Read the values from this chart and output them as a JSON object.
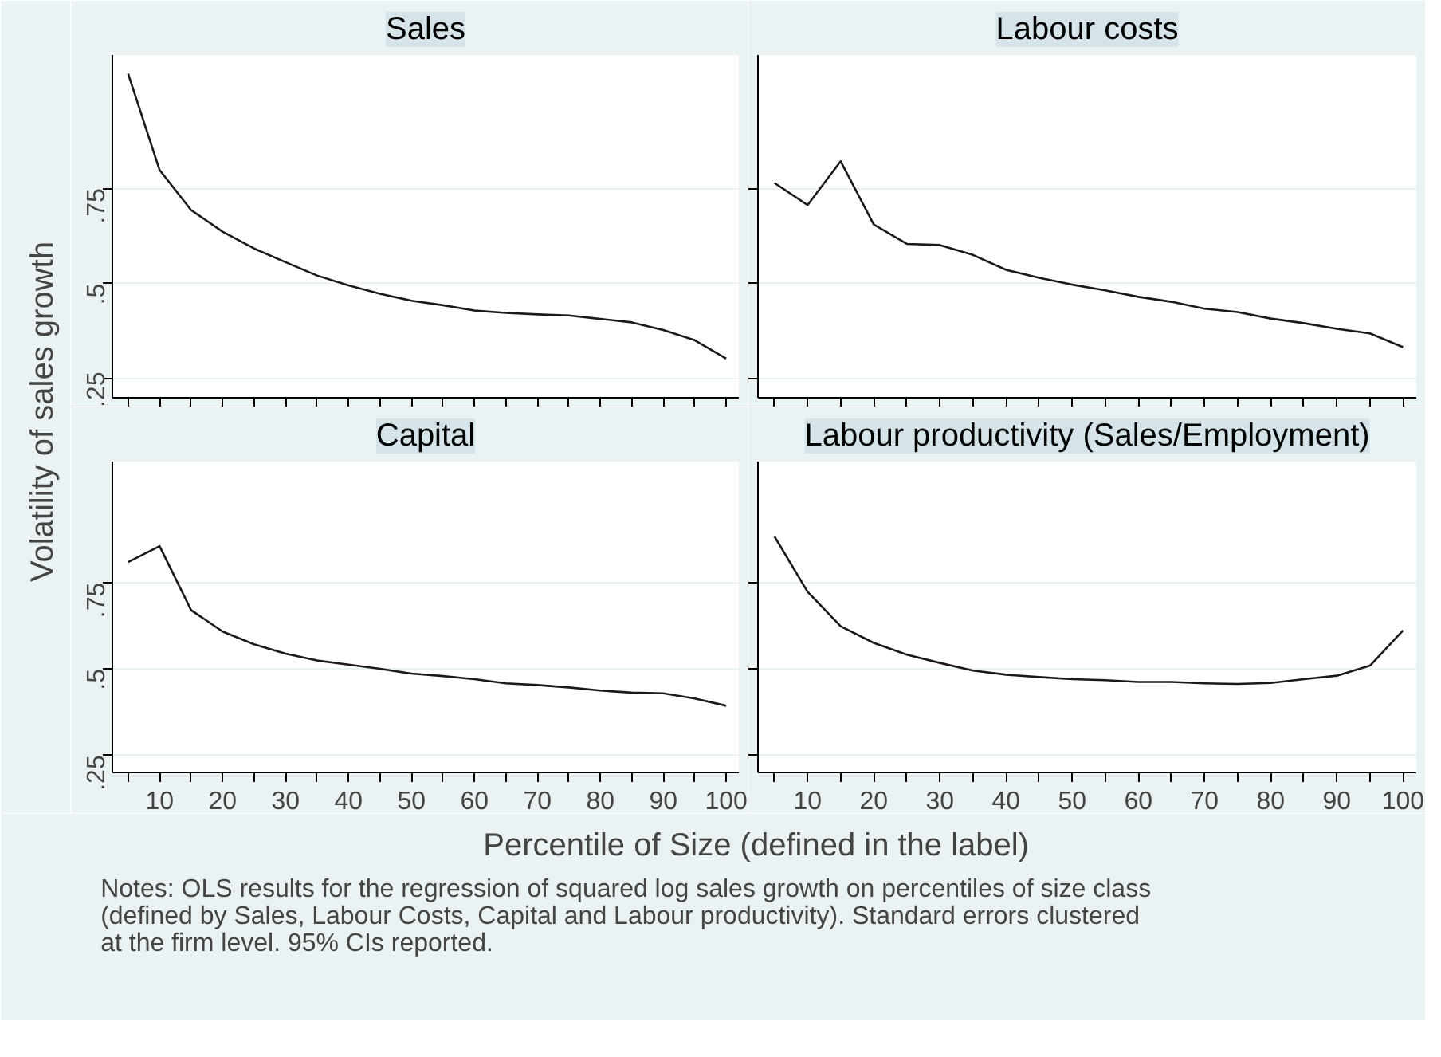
{
  "chart_data": [
    {
      "type": "line",
      "title": "Sales",
      "ylabel": "Volatility  of sales growth",
      "x": [
        5,
        10,
        15,
        20,
        25,
        30,
        35,
        40,
        45,
        50,
        55,
        60,
        65,
        70,
        75,
        80,
        85,
        90,
        95,
        100
      ],
      "values": [
        1.051,
        0.798,
        0.693,
        0.636,
        0.592,
        0.556,
        0.521,
        0.495,
        0.473,
        0.455,
        0.443,
        0.429,
        0.423,
        0.419,
        0.416,
        0.407,
        0.398,
        0.378,
        0.351,
        0.303
      ],
      "color": "#1a1a1a",
      "marker": "none",
      "xlim": [
        2.5,
        102
      ],
      "ylim": [
        0.2,
        1.1
      ],
      "xticks": [
        {
          "value": 5,
          "label": null
        },
        {
          "value": 10,
          "label": null
        },
        {
          "value": 15,
          "label": null
        },
        {
          "value": 20,
          "label": null
        },
        {
          "value": 25,
          "label": null
        },
        {
          "value": 30,
          "label": null
        },
        {
          "value": 35,
          "label": null
        },
        {
          "value": 40,
          "label": null
        },
        {
          "value": 45,
          "label": null
        },
        {
          "value": 50,
          "label": null
        },
        {
          "value": 55,
          "label": null
        },
        {
          "value": 60,
          "label": null
        },
        {
          "value": 65,
          "label": null
        },
        {
          "value": 70,
          "label": null
        },
        {
          "value": 75,
          "label": null
        },
        {
          "value": 80,
          "label": null
        },
        {
          "value": 85,
          "label": null
        },
        {
          "value": 90,
          "label": null
        },
        {
          "value": 95,
          "label": null
        },
        {
          "value": 100,
          "label": null
        }
      ],
      "yticks": [
        {
          "value": 0.25,
          "label": ".25"
        },
        {
          "value": 0.5,
          "label": ".5"
        },
        {
          "value": 0.75,
          "label": ".75"
        }
      ],
      "grid": "y",
      "tick_labels": "y"
    },
    {
      "type": "line",
      "title": "Labour costs",
      "x": [
        5,
        10,
        15,
        20,
        25,
        30,
        35,
        40,
        45,
        50,
        55,
        60,
        65,
        70,
        75,
        80,
        85,
        90,
        95,
        100
      ],
      "values": [
        0.764,
        0.706,
        0.821,
        0.655,
        0.604,
        0.601,
        0.575,
        0.536,
        0.515,
        0.497,
        0.482,
        0.465,
        0.452,
        0.434,
        0.425,
        0.408,
        0.396,
        0.381,
        0.369,
        0.333
      ],
      "color": "#1a1a1a",
      "marker": "none",
      "xlim": [
        2.5,
        102
      ],
      "ylim": [
        0.2,
        1.1
      ],
      "xticks": [
        {
          "value": 5,
          "label": null
        },
        {
          "value": 10,
          "label": null
        },
        {
          "value": 15,
          "label": null
        },
        {
          "value": 20,
          "label": null
        },
        {
          "value": 25,
          "label": null
        },
        {
          "value": 30,
          "label": null
        },
        {
          "value": 35,
          "label": null
        },
        {
          "value": 40,
          "label": null
        },
        {
          "value": 45,
          "label": null
        },
        {
          "value": 50,
          "label": null
        },
        {
          "value": 55,
          "label": null
        },
        {
          "value": 60,
          "label": null
        },
        {
          "value": 65,
          "label": null
        },
        {
          "value": 70,
          "label": null
        },
        {
          "value": 75,
          "label": null
        },
        {
          "value": 80,
          "label": null
        },
        {
          "value": 85,
          "label": null
        },
        {
          "value": 90,
          "label": null
        },
        {
          "value": 95,
          "label": null
        },
        {
          "value": 100,
          "label": null
        }
      ],
      "yticks": [
        {
          "value": 0.25,
          "label": null
        },
        {
          "value": 0.5,
          "label": null
        },
        {
          "value": 0.75,
          "label": null
        }
      ],
      "grid": "y",
      "tick_labels": false
    },
    {
      "type": "line",
      "title": "Capital",
      "xlabel": "Percentile of Size (defined in the label)",
      "annotations": [
        "Notes: OLS results for the regression of squared log sales growth on percentiles of size class\n(defined by Sales, Labour Costs, Capital and Labour productivity). Standard errors clustered\nat the firm level. 95% CIs reported."
      ],
      "x": [
        5,
        10,
        15,
        20,
        25,
        30,
        35,
        40,
        45,
        50,
        55,
        60,
        65,
        70,
        75,
        80,
        85,
        90,
        95,
        100
      ],
      "values": [
        0.809,
        0.855,
        0.67,
        0.608,
        0.571,
        0.544,
        0.524,
        0.512,
        0.5,
        0.486,
        0.479,
        0.47,
        0.458,
        0.453,
        0.446,
        0.437,
        0.431,
        0.429,
        0.414,
        0.393
      ],
      "color": "#1a1a1a",
      "marker": "none",
      "xlim": [
        2.5,
        102
      ],
      "ylim": [
        0.2,
        1.1
      ],
      "xticks": [
        {
          "value": 5,
          "label": null
        },
        10,
        {
          "value": 15,
          "label": null
        },
        20,
        {
          "value": 25,
          "label": null
        },
        30,
        {
          "value": 35,
          "label": null
        },
        40,
        {
          "value": 45,
          "label": null
        },
        50,
        {
          "value": 55,
          "label": null
        },
        60,
        {
          "value": 65,
          "label": null
        },
        70,
        {
          "value": 75,
          "label": null
        },
        80,
        {
          "value": 85,
          "label": null
        },
        90,
        {
          "value": 95,
          "label": null
        },
        100
      ],
      "yticks": [
        {
          "value": 0.25,
          "label": ".25"
        },
        {
          "value": 0.5,
          "label": ".5"
        },
        {
          "value": 0.75,
          "label": ".75"
        }
      ],
      "grid": "y"
    },
    {
      "type": "line",
      "title": "Labour productivity (Sales/Employment)",
      "x": [
        5,
        10,
        15,
        20,
        25,
        30,
        35,
        40,
        45,
        50,
        55,
        60,
        65,
        70,
        75,
        80,
        85,
        90,
        95,
        100
      ],
      "values": [
        0.883,
        0.723,
        0.623,
        0.575,
        0.541,
        0.517,
        0.495,
        0.483,
        0.476,
        0.47,
        0.467,
        0.462,
        0.462,
        0.458,
        0.456,
        0.459,
        0.47,
        0.48,
        0.509,
        0.611
      ],
      "color": "#1a1a1a",
      "marker": "none",
      "xlim": [
        2.5,
        102
      ],
      "ylim": [
        0.2,
        1.1
      ],
      "xticks": [
        {
          "value": 5,
          "label": null
        },
        10,
        {
          "value": 15,
          "label": null
        },
        20,
        {
          "value": 25,
          "label": null
        },
        30,
        {
          "value": 35,
          "label": null
        },
        40,
        {
          "value": 45,
          "label": null
        },
        50,
        {
          "value": 55,
          "label": null
        },
        60,
        {
          "value": 65,
          "label": null
        },
        70,
        {
          "value": 75,
          "label": null
        },
        80,
        {
          "value": 85,
          "label": null
        },
        90,
        {
          "value": 95,
          "label": null
        },
        100
      ],
      "yticks": [
        {
          "value": 0.25,
          "label": null
        },
        {
          "value": 0.5,
          "label": null
        },
        {
          "value": 0.75,
          "label": null
        }
      ],
      "grid": "y",
      "tick_labels": "x"
    }
  ]
}
